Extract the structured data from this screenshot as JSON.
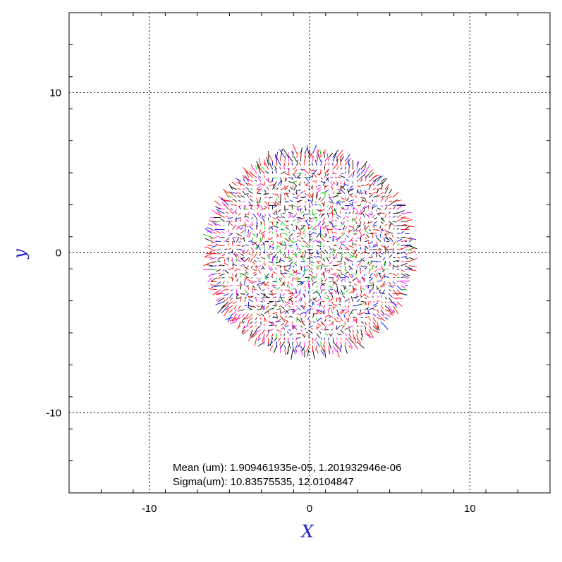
{
  "chart_data": {
    "type": "scatter",
    "subtype": "vector-field",
    "title": "",
    "xlabel": "X",
    "ylabel": "y",
    "xlim": [
      -15,
      15
    ],
    "ylim": [
      -15,
      15
    ],
    "xticks": [
      -10,
      0,
      10
    ],
    "yticks": [
      -10,
      0,
      10
    ],
    "xtick_labels": [
      "-10",
      "0",
      "10"
    ],
    "ytick_labels": [
      "-10",
      "0",
      "10"
    ],
    "grid": true,
    "grid_style": "dotted",
    "field": {
      "shape": "disc",
      "center": [
        0,
        0
      ],
      "radius": 6.3,
      "grid_spacing": 0.25
    },
    "series_colors": [
      "#ff0000",
      "#00cc00",
      "#0000ff",
      "#ff00ff",
      "#000000"
    ],
    "annotations": {
      "mean_label": "Mean (um):",
      "mean_values": "1.909461935e-05, 1.201932946e-06",
      "sigma_label": "Sigma(um):",
      "sigma_values": "10.83575535, 12.0104847"
    }
  }
}
